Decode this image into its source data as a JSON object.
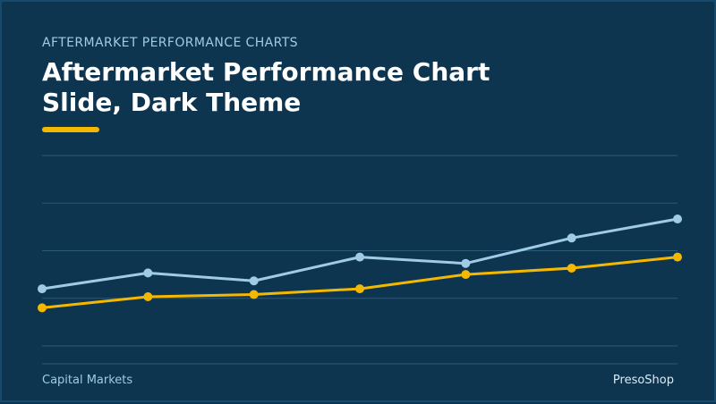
{
  "header": {
    "eyebrow": "AFTERMARKET PERFORMANCE CHARTS",
    "title": "Aftermarket Performance Chart Slide, Dark Theme"
  },
  "footer": {
    "left": "Capital Markets",
    "right": "PresoShop"
  },
  "colors": {
    "background": "#0d3550",
    "accent": "#f5b800",
    "series_blue": "#9fcbe6",
    "grid": "#2b5a78"
  },
  "chart_data": {
    "type": "line",
    "grid": true,
    "ylim": [
      0,
      6
    ],
    "x": [
      1,
      2,
      3,
      4,
      5,
      6,
      7
    ],
    "series": [
      {
        "color": "#9fcbe6",
        "values": [
          1.8,
          2.3,
          2.05,
          2.8,
          2.6,
          3.4,
          4.0
        ]
      },
      {
        "color": "#f5b800",
        "values": [
          1.2,
          1.55,
          1.62,
          1.8,
          2.25,
          2.45,
          2.8
        ]
      }
    ]
  }
}
